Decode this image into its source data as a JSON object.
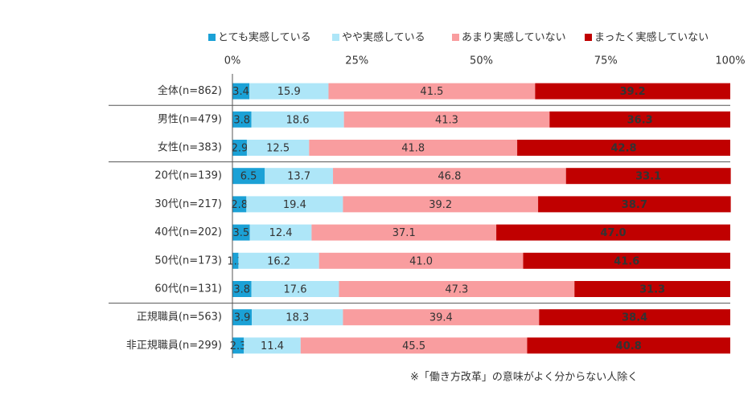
{
  "chart_data": {
    "type": "stacked-bar-horizontal",
    "categories": [
      "全体(n=862)",
      "男性(n=479)",
      "女性(n=383)",
      "20代(n=139)",
      "30代(n=217)",
      "40代(n=202)",
      "50代(n=173)",
      "60代(n=131)",
      "正規職員(n=563)",
      "非正規職員(n=299)"
    ],
    "series": [
      {
        "name": "とても実感している",
        "color": "#1ba1d6",
        "values": [
          3.4,
          3.8,
          2.9,
          6.5,
          2.8,
          3.5,
          1.2,
          3.8,
          3.9,
          2.3
        ]
      },
      {
        "name": "やや実感している",
        "color": "#aee6f8",
        "values": [
          15.9,
          18.6,
          12.5,
          13.7,
          19.4,
          12.4,
          16.2,
          17.6,
          18.3,
          11.4
        ]
      },
      {
        "name": "あまり実感していない",
        "color": "#f99d9f",
        "values": [
          41.5,
          41.3,
          41.8,
          46.8,
          39.2,
          37.1,
          41.0,
          47.3,
          39.4,
          45.5
        ],
        "value_labels": [
          "41.5",
          "41.3",
          "41.8",
          "46.8",
          "39.2",
          "37.1",
          "41.0",
          "47.3",
          "39.4",
          "45.5"
        ]
      },
      {
        "name": "まったく実感していない",
        "color": "#c00000",
        "values": [
          39.2,
          36.3,
          42.8,
          33.1,
          38.7,
          47.0,
          41.6,
          31.3,
          38.4,
          40.8
        ],
        "value_labels": [
          "39.2",
          "36.3",
          "42.8",
          "33.1",
          "38.7",
          "47.0",
          "41.6",
          "31.3",
          "38.4",
          "40.8"
        ]
      }
    ],
    "xlim": [
      0,
      100
    ],
    "xticks": [
      {
        "value": 0,
        "label": "0%"
      },
      {
        "value": 25,
        "label": "25%"
      },
      {
        "value": 50,
        "label": "50%"
      },
      {
        "value": 75,
        "label": "75%"
      },
      {
        "value": 100,
        "label": "100%"
      }
    ],
    "legend": "top",
    "note": "※「働き方改革」の意味がよく分からない人除く"
  }
}
